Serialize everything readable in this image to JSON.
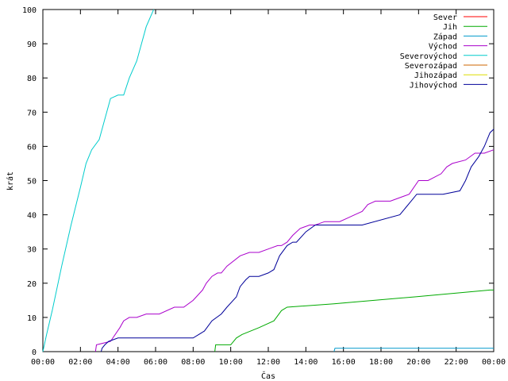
{
  "chart_data": {
    "type": "line",
    "title": "",
    "xlabel": "Čas",
    "ylabel": "krát",
    "xlim": [
      0,
      24
    ],
    "ylim": [
      0,
      100
    ],
    "x_ticks": [
      {
        "value": 0,
        "label": "00:00"
      },
      {
        "value": 2,
        "label": "02:00"
      },
      {
        "value": 4,
        "label": "04:00"
      },
      {
        "value": 6,
        "label": "06:00"
      },
      {
        "value": 8,
        "label": "08:00"
      },
      {
        "value": 10,
        "label": "10:00"
      },
      {
        "value": 12,
        "label": "12:00"
      },
      {
        "value": 14,
        "label": "14:00"
      },
      {
        "value": 16,
        "label": "16:00"
      },
      {
        "value": 18,
        "label": "18:00"
      },
      {
        "value": 20,
        "label": "20:00"
      },
      {
        "value": 22,
        "label": "22:00"
      },
      {
        "value": 24,
        "label": "00:00"
      }
    ],
    "y_ticks": [
      0,
      10,
      20,
      30,
      40,
      50,
      60,
      70,
      80,
      90,
      100
    ],
    "grid": false,
    "legend_position": "top-right",
    "series": [
      {
        "name": "Sever",
        "color": "#ff0000",
        "x": [],
        "y": []
      },
      {
        "name": "Jih",
        "color": "#00aa00",
        "x": [
          9.15,
          9.2,
          10.0,
          10.3,
          10.6,
          11.5,
          12.3,
          12.7,
          13.0,
          15.5,
          19.8,
          23.8,
          24.0
        ],
        "y": [
          0,
          2,
          2,
          4,
          5,
          7,
          9,
          12,
          13,
          14,
          16,
          18,
          18
        ]
      },
      {
        "name": "Západ",
        "color": "#0099cc",
        "x": [
          15.5,
          15.55,
          24.0
        ],
        "y": [
          0,
          1,
          1
        ]
      },
      {
        "name": "Východ",
        "color": "#aa00cc",
        "x": [
          2.8,
          2.85,
          3.6,
          4.1,
          4.3,
          4.6,
          5.0,
          5.5,
          6.2,
          7.0,
          7.5,
          8.0,
          8.5,
          8.7,
          9.0,
          9.3,
          9.5,
          9.8,
          10.5,
          11.0,
          11.5,
          12.0,
          12.5,
          12.7,
          13.0,
          13.3,
          13.7,
          14.2,
          14.5,
          15.0,
          15.8,
          16.2,
          16.6,
          17.0,
          17.3,
          17.7,
          18.5,
          19.0,
          19.5,
          20.0,
          20.5,
          21.2,
          21.5,
          21.8,
          22.5,
          23.0,
          23.5,
          24.0
        ],
        "y": [
          0,
          2,
          3,
          7,
          9,
          10,
          10,
          11,
          11,
          13,
          13,
          15,
          18,
          20,
          22,
          23,
          23,
          25,
          28,
          29,
          29,
          30,
          31,
          31,
          32,
          34,
          36,
          37,
          37,
          38,
          38,
          39,
          40,
          41,
          43,
          44,
          44,
          45,
          46,
          50,
          50,
          52,
          54,
          55,
          56,
          58,
          58,
          59
        ]
      },
      {
        "name": "Severovýchod",
        "color": "#00cccc",
        "x": [
          0,
          0.2,
          0.5,
          1.0,
          1.5,
          2.0,
          2.3,
          2.6,
          3.0,
          3.3,
          3.6,
          4.0,
          4.3,
          4.6,
          5.0,
          5.5,
          5.9
        ],
        "y": [
          0,
          5,
          12,
          25,
          37,
          48,
          55,
          59,
          62,
          68,
          74,
          75,
          75,
          80,
          85,
          95,
          100
        ]
      },
      {
        "name": "Severozápad",
        "color": "#cc6600",
        "x": [],
        "y": []
      },
      {
        "name": "Jihozápad",
        "color": "#dddd00",
        "x": [],
        "y": []
      },
      {
        "name": "Jihovýchod",
        "color": "#000099",
        "x": [
          3.1,
          3.15,
          3.3,
          3.5,
          4.0,
          8.0,
          8.3,
          8.6,
          9.0,
          9.5,
          9.8,
          10.3,
          10.5,
          10.8,
          11.0,
          11.5,
          12.0,
          12.3,
          12.6,
          13.0,
          13.3,
          13.5,
          14.0,
          14.5,
          15.0,
          15.5,
          16.0,
          16.5,
          17.0,
          19.0,
          19.3,
          19.6,
          19.9,
          20.3,
          21.3,
          22.2,
          22.5,
          22.8,
          23.2,
          23.5,
          23.8,
          24.0
        ],
        "y": [
          0,
          1,
          2,
          3,
          4,
          4,
          5,
          6,
          9,
          11,
          13,
          16,
          19,
          21,
          22,
          22,
          23,
          24,
          28,
          31,
          32,
          32,
          35,
          37,
          37,
          37,
          37,
          37,
          37,
          40,
          42,
          44,
          46,
          46,
          46,
          47,
          50,
          54,
          57,
          60,
          64,
          65
        ]
      }
    ]
  }
}
